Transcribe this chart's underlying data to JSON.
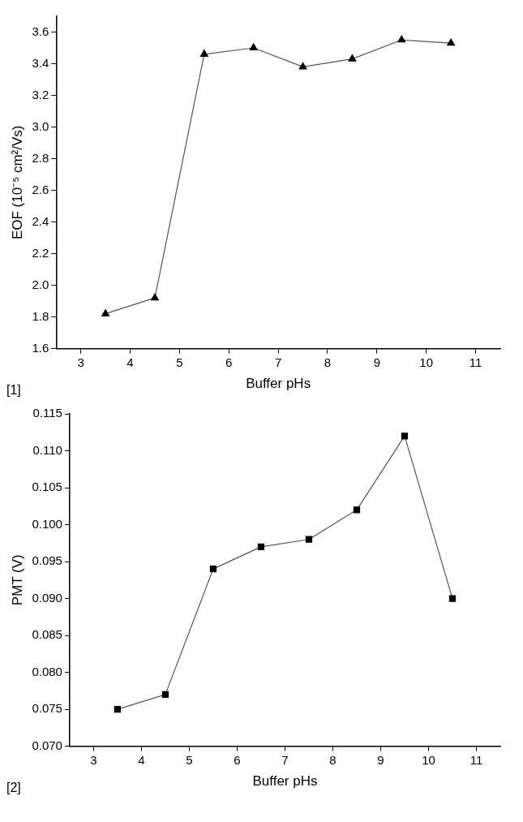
{
  "chart_data": [
    {
      "type": "line",
      "xlabel": "Buffer pHs",
      "ylabel": "EOF (10⁻⁵ cm²/Vs)",
      "x": [
        3.5,
        4.5,
        5.5,
        6.5,
        7.5,
        8.5,
        9.5,
        10.5
      ],
      "series": [
        {
          "color": "#000000",
          "values": [
            1.82,
            1.92,
            3.46,
            3.5,
            3.38,
            3.43,
            3.55,
            3.53
          ]
        }
      ],
      "xlim": [
        2.5,
        11.5
      ],
      "xticks": [
        3,
        4,
        5,
        6,
        7,
        8,
        9,
        10,
        11
      ],
      "ylim": [
        1.6,
        3.7
      ],
      "yticks": [
        {
          "value": 1.6,
          "label": "1.6"
        },
        {
          "value": 1.8,
          "label": "1.8"
        },
        {
          "value": 2.0,
          "label": "2.0"
        },
        {
          "value": 2.2,
          "label": "2.2"
        },
        {
          "value": 2.4,
          "label": "2.4"
        },
        {
          "value": 2.6,
          "label": "2.6"
        },
        {
          "value": 2.8,
          "label": "2.8"
        },
        {
          "value": 3.0,
          "label": "3.0"
        },
        {
          "value": 3.2,
          "label": "3.2"
        },
        {
          "value": 3.4,
          "label": "3.4"
        },
        {
          "value": 3.6,
          "label": "3.6"
        }
      ],
      "grid": false,
      "legend": false,
      "marker": "triangle",
      "line_style": "solid",
      "annotations": [
        "[1]"
      ]
    },
    {
      "type": "line",
      "xlabel": "Buffer pHs",
      "ylabel": "PMT (V)",
      "x": [
        3.5,
        4.5,
        5.5,
        6.5,
        7.5,
        8.5,
        9.5,
        10.5
      ],
      "series": [
        {
          "color": "#000000",
          "values": [
            0.075,
            0.077,
            0.094,
            0.097,
            0.098,
            0.102,
            0.112,
            0.09
          ]
        }
      ],
      "xlim": [
        2.5,
        11.5
      ],
      "xticks": [
        3,
        4,
        5,
        6,
        7,
        8,
        9,
        10,
        11
      ],
      "ylim": [
        0.07,
        0.115
      ],
      "yticks": [
        {
          "value": 0.07,
          "label": "0.070"
        },
        {
          "value": 0.075,
          "label": "0.075"
        },
        {
          "value": 0.08,
          "label": "0.080"
        },
        {
          "value": 0.085,
          "label": "0.085"
        },
        {
          "value": 0.09,
          "label": "0.090"
        },
        {
          "value": 0.095,
          "label": "0.095"
        },
        {
          "value": 0.1,
          "label": "0.100"
        },
        {
          "value": 0.105,
          "label": "0.105"
        },
        {
          "value": 0.11,
          "label": "0.110"
        },
        {
          "value": 0.115,
          "label": "0.115"
        }
      ],
      "grid": false,
      "legend": false,
      "marker": "square",
      "line_style": "solid",
      "annotations": [
        "[2]"
      ]
    }
  ]
}
